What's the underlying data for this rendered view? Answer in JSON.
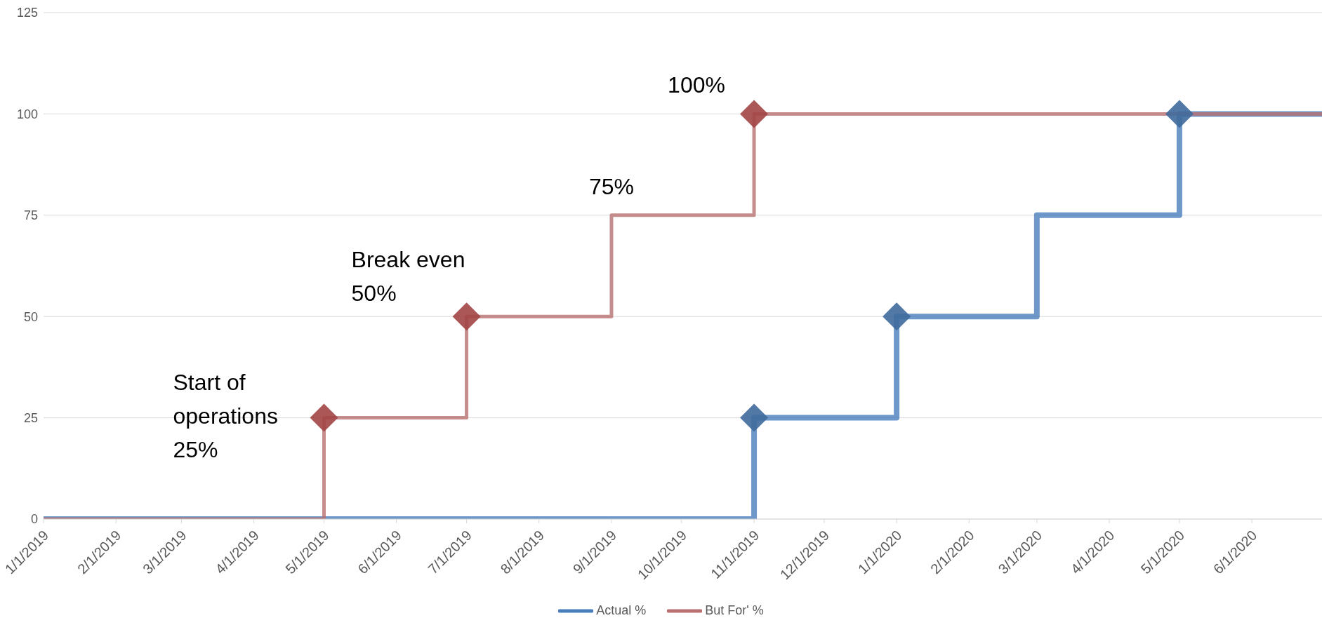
{
  "chart_data": {
    "type": "step",
    "series": [
      {
        "name": "Actual %",
        "color": "#4a7ebb",
        "x": [
          "2019-01-01",
          "2019-11-01",
          "2020-01-01",
          "2020-03-01",
          "2020-05-01",
          "2020-07-01"
        ],
        "values": [
          0,
          25,
          50,
          75,
          100,
          100
        ]
      },
      {
        "name": "But For' %",
        "color": "#b87070",
        "x": [
          "2019-01-01",
          "2019-05-01",
          "2019-07-01",
          "2019-09-01",
          "2019-11-01",
          "2020-07-01"
        ],
        "values": [
          0,
          25,
          50,
          75,
          100,
          100
        ]
      },
      {
        "type": "scatter",
        "marker": "diamond",
        "color": "#3f6a9c",
        "x": [
          "2019-11-01",
          "2020-01-01",
          "2020-05-01"
        ],
        "values": [
          25,
          50,
          100
        ]
      },
      {
        "type": "scatter",
        "marker": "diamond",
        "color": "#a34545",
        "x": [
          "2019-05-01",
          "2019-07-01",
          "2019-11-01"
        ],
        "values": [
          25,
          50,
          100
        ]
      }
    ],
    "xlim": [
      "2019-01-01",
      "2020-07-01"
    ],
    "xticks": [
      {
        "value": "2019-01-01",
        "label": "1/1/2019"
      },
      {
        "value": "2019-02-01",
        "label": "2/1/2019"
      },
      {
        "value": "2019-03-01",
        "label": "3/1/2019"
      },
      {
        "value": "2019-04-01",
        "label": "4/1/2019"
      },
      {
        "value": "2019-05-01",
        "label": "5/1/2019"
      },
      {
        "value": "2019-06-01",
        "label": "6/1/2019"
      },
      {
        "value": "2019-07-01",
        "label": "7/1/2019"
      },
      {
        "value": "2019-08-01",
        "label": "8/1/2019"
      },
      {
        "value": "2019-09-01",
        "label": "9/1/2019"
      },
      {
        "value": "2019-10-01",
        "label": "10/1/2019"
      },
      {
        "value": "2019-11-01",
        "label": "11/1/2019"
      },
      {
        "value": "2019-12-01",
        "label": "12/1/2019"
      },
      {
        "value": "2020-01-01",
        "label": "1/1/2020"
      },
      {
        "value": "2020-02-01",
        "label": "2/1/2020"
      },
      {
        "value": "2020-03-01",
        "label": "3/1/2020"
      },
      {
        "value": "2020-04-01",
        "label": "4/1/2020"
      },
      {
        "value": "2020-05-01",
        "label": "5/1/2020"
      },
      {
        "value": "2020-06-01",
        "label": "6/1/2020"
      }
    ],
    "ylim": [
      0,
      125
    ],
    "yticks": [
      0,
      25,
      50,
      75,
      100,
      125
    ],
    "grid": "y",
    "legend": "bottom",
    "line_style": "solid",
    "annotations": [
      {
        "text": "Start of operations 25%",
        "x": "2019-05-01",
        "y": 25
      },
      {
        "text": "Break even 50%",
        "x": "2019-07-01",
        "y": 50
      },
      {
        "text": "75%",
        "x": "2019-09-01",
        "y": 75
      },
      {
        "text": "100%",
        "x": "2019-11-01",
        "y": 100
      }
    ]
  }
}
